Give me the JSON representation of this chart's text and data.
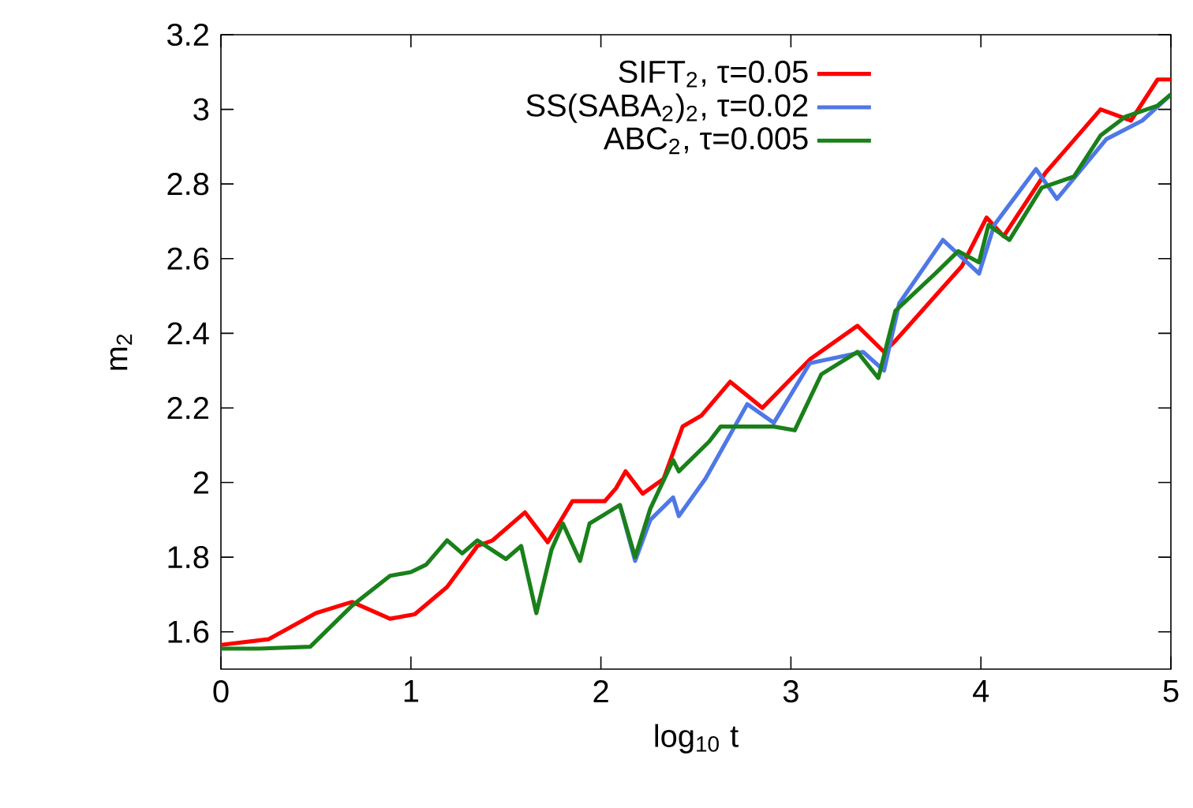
{
  "chart_data": {
    "type": "line",
    "xlabel": "log$_{10}$ t",
    "ylabel": "m$_{2}$",
    "xlim": [
      0,
      5
    ],
    "ylim": [
      1.5,
      3.2
    ],
    "xticks": [
      0,
      1,
      2,
      3,
      4,
      5
    ],
    "yticks": [
      1.6,
      1.8,
      2,
      2.2,
      2.4,
      2.6,
      2.8,
      3,
      3.2
    ],
    "legend": "top right",
    "grid": false,
    "series": [
      {
        "name": "SIFT$_{2}$, τ=0.05",
        "color": "#ff0000",
        "x": [
          0,
          0.25,
          0.5,
          0.69,
          0.89,
          1.02,
          1.19,
          1.35,
          1.43,
          1.6,
          1.72,
          1.85,
          2.02,
          2.08,
          2.13,
          2.22,
          2.33,
          2.43,
          2.53,
          2.68,
          2.85,
          3.1,
          3.35,
          3.49,
          3.55,
          3.76,
          3.9,
          4.03,
          4.12,
          4.34,
          4.46,
          4.63,
          4.79,
          4.93,
          5.0
        ],
        "values": [
          1.565,
          1.58,
          1.65,
          1.68,
          1.635,
          1.647,
          1.72,
          1.83,
          1.845,
          1.92,
          1.84,
          1.95,
          1.95,
          1.985,
          2.03,
          1.97,
          2.01,
          2.15,
          2.18,
          2.27,
          2.2,
          2.33,
          2.42,
          2.35,
          2.38,
          2.5,
          2.58,
          2.71,
          2.66,
          2.83,
          2.9,
          3.0,
          2.97,
          3.08,
          3.08
        ]
      },
      {
        "name": "SS(SABA$_{2}$)$_{2}$, τ=0.02",
        "color": "#4f78e6",
        "x": [
          2.1,
          2.18,
          2.26,
          2.38,
          2.41,
          2.55,
          2.77,
          2.91,
          3.1,
          3.38,
          3.49,
          3.57,
          3.8,
          3.99,
          4.07,
          4.29,
          4.4,
          4.66,
          4.85,
          5.0
        ],
        "values": [
          1.94,
          1.79,
          1.9,
          1.96,
          1.91,
          2.01,
          2.21,
          2.16,
          2.32,
          2.35,
          2.3,
          2.48,
          2.65,
          2.56,
          2.69,
          2.84,
          2.76,
          2.92,
          2.97,
          3.04
        ]
      },
      {
        "name": "ABC$_{2}$, τ=0.005",
        "color": "#1a801a",
        "x": [
          0,
          0.2,
          0.47,
          0.69,
          0.89,
          1.0,
          1.08,
          1.19,
          1.27,
          1.35,
          1.5,
          1.58,
          1.66,
          1.74,
          1.8,
          1.89,
          1.94,
          2.1,
          2.18,
          2.26,
          2.38,
          2.41,
          2.57,
          2.63,
          2.91,
          3.02,
          3.16,
          3.35,
          3.46,
          3.55,
          3.76,
          3.88,
          3.99,
          4.04,
          4.15,
          4.32,
          4.49,
          4.63,
          4.76,
          4.93,
          5.0
        ],
        "values": [
          1.555,
          1.555,
          1.56,
          1.67,
          1.75,
          1.76,
          1.78,
          1.845,
          1.81,
          1.845,
          1.795,
          1.83,
          1.65,
          1.82,
          1.89,
          1.79,
          1.89,
          1.94,
          1.8,
          1.93,
          2.06,
          2.03,
          2.11,
          2.15,
          2.15,
          2.14,
          2.29,
          2.35,
          2.28,
          2.46,
          2.56,
          2.62,
          2.59,
          2.69,
          2.65,
          2.79,
          2.82,
          2.93,
          2.98,
          3.01,
          3.04
        ]
      }
    ]
  }
}
